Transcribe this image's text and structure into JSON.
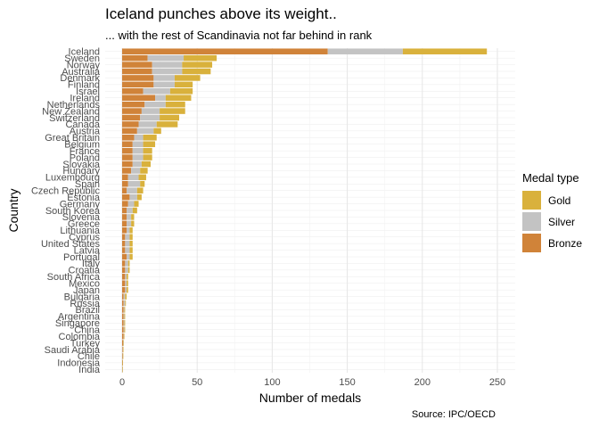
{
  "chart_data": {
    "type": "bar",
    "orientation": "horizontal",
    "stacked": true,
    "title": "Iceland punches above its weight..",
    "subtitle": "... with the rest of Scandinavia not far behind in rank",
    "xlabel": "Number of medals",
    "ylabel": "Country",
    "caption": "Source: IPC/OECD",
    "xlim": [
      0,
      250
    ],
    "xticks": [
      0,
      50,
      100,
      150,
      200,
      250
    ],
    "grid": true,
    "legend": {
      "title": "Medal type",
      "position": "right"
    },
    "categories": [
      "Iceland",
      "Sweden",
      "Norway",
      "Australia",
      "Denmark",
      "Finland",
      "Israel",
      "Ireland",
      "Netherlands",
      "New Zealand",
      "Switzerland",
      "Canada",
      "Austria",
      "Great Britain",
      "Belgium",
      "France",
      "Poland",
      "Slovakia",
      "Hungary",
      "Luxembourg",
      "Spain",
      "Czech Republic",
      "Estonia",
      "Germany",
      "South Korea",
      "Slovenia",
      "Greece",
      "Lithuania",
      "Cyprus",
      "United States",
      "Latvia",
      "Portugal",
      "Italy",
      "Croatia",
      "South Africa",
      "Mexico",
      "Japan",
      "Bulgaria",
      "Russia",
      "Brazil",
      "Argentina",
      "Singapore",
      "China",
      "Colombia",
      "Turkey",
      "Saudi Arabia",
      "Chile",
      "Indonesia",
      "India"
    ],
    "series": [
      {
        "name": "Bronze",
        "color": "#d08339",
        "values": [
          137,
          17,
          20,
          20,
          21,
          21,
          14,
          22,
          15,
          13,
          12,
          11,
          10,
          8,
          7,
          7,
          7,
          7,
          6,
          4,
          4,
          3,
          5,
          4,
          3,
          3,
          3,
          3,
          2,
          2,
          2,
          3,
          2,
          2,
          2,
          2,
          2,
          1,
          1,
          1,
          1,
          1,
          1,
          1,
          0.6,
          0.4,
          0.3,
          0.2,
          0.1
        ]
      },
      {
        "name": "Silver",
        "color": "#c3c3c3",
        "values": [
          50,
          24,
          20,
          20,
          14,
          14,
          18,
          7,
          14,
          12,
          13,
          12,
          11,
          6,
          7,
          7,
          7,
          6,
          6,
          7,
          8,
          7,
          5,
          4,
          4,
          3,
          3,
          2,
          3,
          3,
          3,
          2,
          2,
          2,
          1,
          1,
          1,
          1,
          1,
          0.5,
          0.5,
          0.5,
          0.5,
          0.3,
          0.2,
          0.2,
          0.2,
          0.1,
          0.1
        ]
      },
      {
        "name": "Gold",
        "color": "#d9b13c",
        "values": [
          56,
          22,
          20,
          19,
          17,
          12,
          15,
          17,
          13,
          17,
          13,
          14,
          5,
          9,
          8,
          6,
          6,
          6,
          5,
          5,
          3,
          4,
          3,
          3,
          3,
          2,
          2,
          2,
          2,
          2,
          2,
          2,
          1,
          1,
          1,
          1,
          1,
          1,
          0.5,
          0.5,
          0.5,
          0.5,
          0.5,
          0.2,
          0.2,
          0.1,
          0.1,
          0.1,
          0.1
        ]
      }
    ]
  },
  "legend_items": [
    {
      "label": "Gold",
      "color": "#d9b13c"
    },
    {
      "label": "Silver",
      "color": "#c3c3c3"
    },
    {
      "label": "Bronze",
      "color": "#d08339"
    }
  ]
}
